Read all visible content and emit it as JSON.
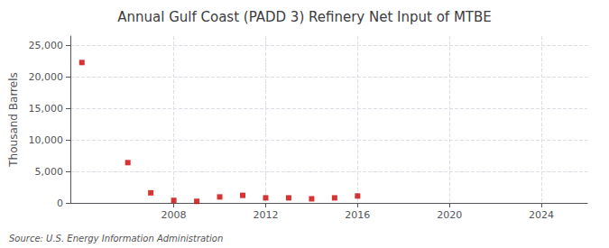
{
  "chart_data": {
    "type": "scatter",
    "title": "Annual Gulf Coast (PADD 3) Refinery Net Input of MTBE",
    "ylabel": "Thousand Barrels",
    "annotation": "Source: U.S. Energy Information Administration",
    "x": [
      2004,
      2006,
      2007,
      2008,
      2009,
      2010,
      2011,
      2012,
      2013,
      2014,
      2015,
      2016
    ],
    "values": [
      22300,
      6400,
      1600,
      400,
      250,
      950,
      1200,
      800,
      800,
      650,
      800,
      1100
    ],
    "color": "#cc0000",
    "marker": "square",
    "xlim": [
      2003.5,
      2026
    ],
    "xticks": [
      2008,
      2012,
      2016,
      2020,
      2024
    ],
    "ylim": [
      0,
      26500
    ],
    "yticks": [
      0,
      {
        "value": 5000,
        "label": "5,000"
      },
      {
        "value": 10000,
        "label": "10,000"
      },
      {
        "value": 15000,
        "label": "15,000"
      },
      {
        "value": 20000,
        "label": "20,000"
      },
      {
        "value": 25000,
        "label": "25,000"
      }
    ],
    "grid": true
  }
}
